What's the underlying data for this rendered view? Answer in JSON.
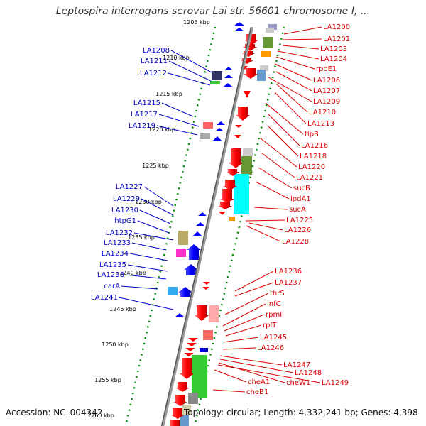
{
  "title": "Leptospira interrogans serovar Lai str. 56601 chromosome I, ...",
  "footer": {
    "accession": "Accession: NC_004342",
    "topology": "Topology: circular; Length: 4,332,241 bp; Genes: 4,398"
  },
  "colors": {
    "backbone": "#7a7a7a",
    "left_label": "#0000cc",
    "right_label": "#dd0000",
    "tick": "#008800"
  },
  "kbp_ticks": [
    "1205 kbp",
    "1210 kbp",
    "1215 kbp",
    "1220 kbp",
    "1225 kbp",
    "1230 kbp",
    "1235 kbp",
    "1240 kbp",
    "1245 kbp",
    "1250 kbp",
    "1255 kbp",
    "1260 kbp"
  ],
  "left_labels": [
    "LA1208",
    "LA1211",
    "LA1212",
    "LA1215",
    "LA1217",
    "LA1219",
    "LA1227",
    "LA1229",
    "LA1230",
    "htpG1",
    "LA1232",
    "LA1233",
    "LA1234",
    "LA1235",
    "LA1238",
    "carA",
    "LA1241"
  ],
  "right_labels": [
    "LA1200",
    "LA1201",
    "LA1203",
    "LA1204",
    "rpoE1",
    "LA1206",
    "LA1207",
    "LA1209",
    "LA1210",
    "LA1213",
    "tlpB",
    "LA1216",
    "LA1218",
    "LA1220",
    "LA1221",
    "sucB",
    "lpdA1",
    "sucA",
    "LA1225",
    "LA1226",
    "LA1228",
    "LA1236",
    "LA1237",
    "thrS",
    "infC",
    "rpmI",
    "rplT",
    "LA1245",
    "LA1246",
    "LA1247",
    "LA1248",
    "cheW1",
    "LA1249",
    "cheA1",
    "cheB1"
  ]
}
